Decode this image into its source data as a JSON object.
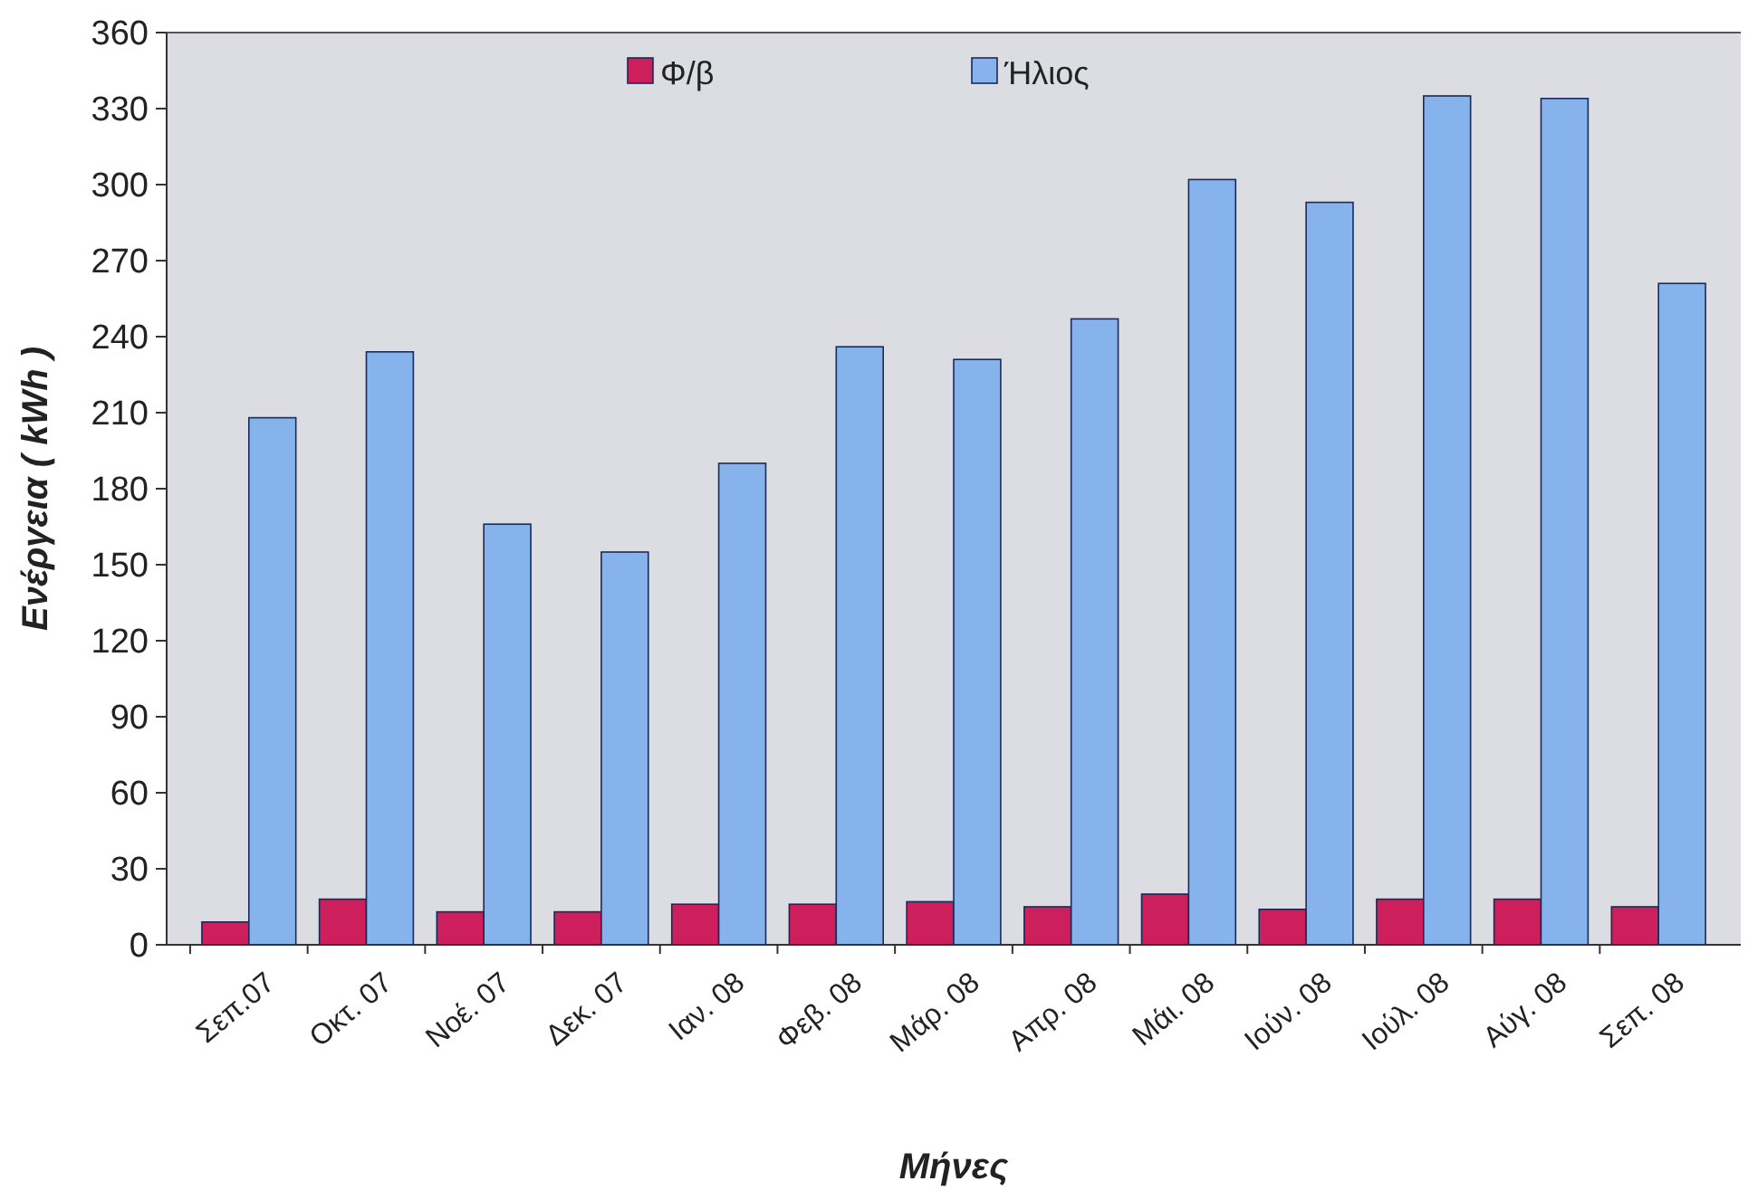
{
  "chart_data": {
    "type": "bar",
    "xlabel": "Μήνες",
    "ylabel": "Ενέργεια ( kWh )",
    "categories": [
      "Σεπ.07",
      "Οκτ. 07",
      "Νοέ. 07",
      "Δεκ. 07",
      "Ιαν. 08",
      "Φεβ. 08",
      "Μάρ. 08",
      "Απρ. 08",
      "Μάι. 08",
      "Ιούν. 08",
      "Ιούλ. 08",
      "Αύγ. 08",
      "Σεπ. 08"
    ],
    "series": [
      {
        "name": "Φ/β",
        "color": "#cc1f5c",
        "values": [
          9,
          18,
          13,
          13,
          16,
          16,
          17,
          15,
          20,
          14,
          18,
          18,
          15
        ]
      },
      {
        "name": "Ήλιος",
        "color": "#86b3ec",
        "values": [
          208,
          234,
          166,
          155,
          190,
          236,
          231,
          247,
          302,
          293,
          335,
          334,
          261
        ]
      }
    ],
    "ylim": [
      0,
      360
    ],
    "yticks": [
      0,
      30,
      60,
      90,
      120,
      150,
      180,
      210,
      240,
      270,
      300,
      330,
      360
    ],
    "legend": "top",
    "grid": false
  }
}
